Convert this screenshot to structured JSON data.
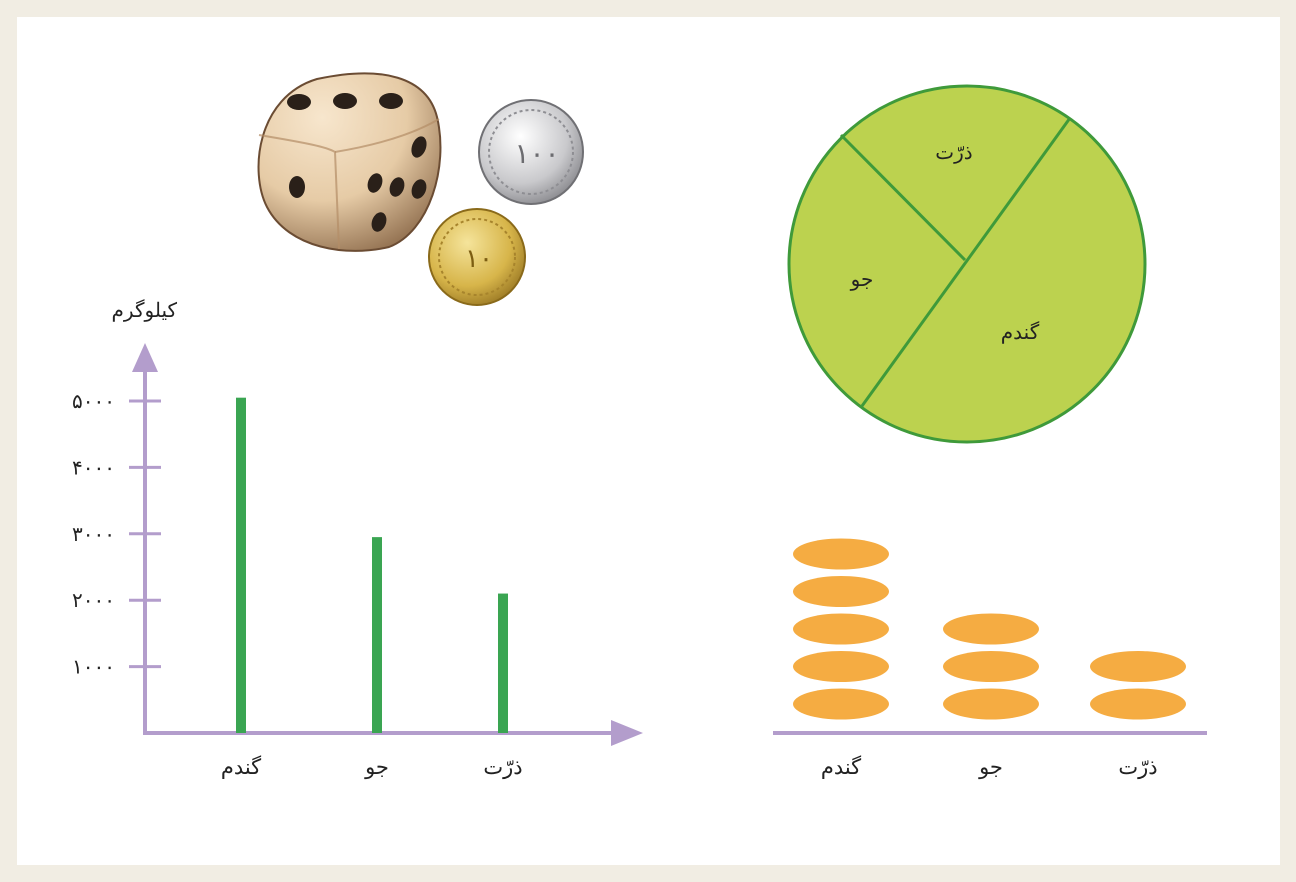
{
  "colors": {
    "frame": "#f1ede3",
    "axis": "#b39dcc",
    "bar": "#3aa552",
    "pie_fill": "#bcd24f",
    "pie_stroke": "#3f9a3a",
    "disc": "#f5ac42"
  },
  "icons": {
    "dice": "dice-icon",
    "coin_silver": "coin-100-icon",
    "coin_gold": "coin-10-icon"
  },
  "coins": {
    "silver_value": "۱۰۰",
    "gold_value": "۱۰"
  },
  "chart_data": [
    {
      "type": "bar",
      "ylabel": "کیلوگرم",
      "categories": [
        "گندم",
        "جو",
        "ذرّت"
      ],
      "values": [
        5050,
        2950,
        2100
      ],
      "yticks": [
        1000,
        2000,
        3000,
        4000,
        5000
      ],
      "yticklabels": [
        "۱۰۰۰",
        "۲۰۰۰",
        "۳۰۰۰",
        "۴۰۰۰",
        "۵۰۰۰"
      ],
      "ylim": [
        0,
        5500
      ]
    },
    {
      "type": "pie",
      "labels": [
        "گندم",
        "جو",
        "ذرّت"
      ],
      "values": [
        50,
        25,
        25
      ]
    },
    {
      "type": "bar",
      "style": "pictogram",
      "categories": [
        "گندم",
        "جو",
        "ذرّت"
      ],
      "values": [
        5,
        3,
        2
      ]
    }
  ]
}
